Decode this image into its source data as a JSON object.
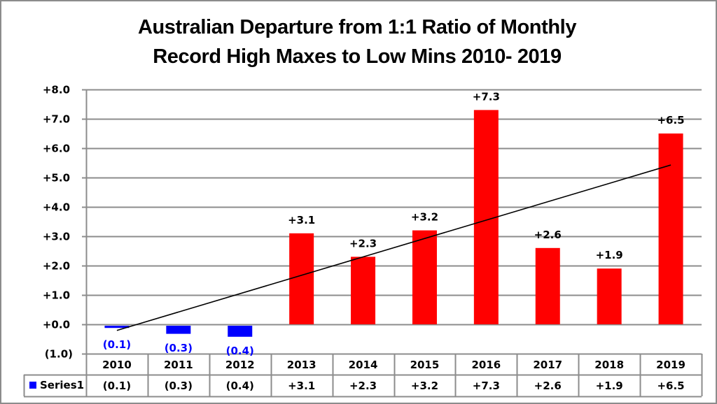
{
  "chart_data": {
    "type": "bar",
    "title_line1": "Australian Departure from 1:1 Ratio of Monthly",
    "title_line2": "Record High Maxes to Low Mins 2010- 2019",
    "categories": [
      "2010",
      "2011",
      "2012",
      "2013",
      "2014",
      "2015",
      "2016",
      "2017",
      "2018",
      "2019"
    ],
    "series": [
      {
        "name": "Series1",
        "values": [
          -0.1,
          -0.3,
          -0.4,
          3.1,
          2.3,
          3.2,
          7.3,
          2.6,
          1.9,
          6.5
        ],
        "labels": [
          "(0.1)",
          "(0.3)",
          "(0.4)",
          "+3.1",
          "+2.3",
          "+3.2",
          "+7.3",
          "+2.6",
          "+1.9",
          "+6.5"
        ]
      }
    ],
    "trendline": {
      "type": "linear",
      "color": "#000000"
    },
    "ylim": [
      -1.0,
      8.0
    ],
    "yticks": [
      8.0,
      7.0,
      6.0,
      5.0,
      4.0,
      3.0,
      2.0,
      1.0,
      0.0,
      -1.0
    ],
    "ytick_labels": [
      "+8.0",
      "+7.0",
      "+6.0",
      "+5.0",
      "+4.0",
      "+3.0",
      "+2.0",
      "+1.0",
      "+0.0",
      "(1.0)"
    ],
    "xlabel": "",
    "ylabel": "",
    "grid": true,
    "data_table": true,
    "legend": "data-table",
    "colors": {
      "positive": "#ff0000",
      "negative": "#0000ff",
      "negative_label": "#0000ff",
      "grid": "#8c8c8c",
      "legend_key": "#0000ff"
    }
  }
}
